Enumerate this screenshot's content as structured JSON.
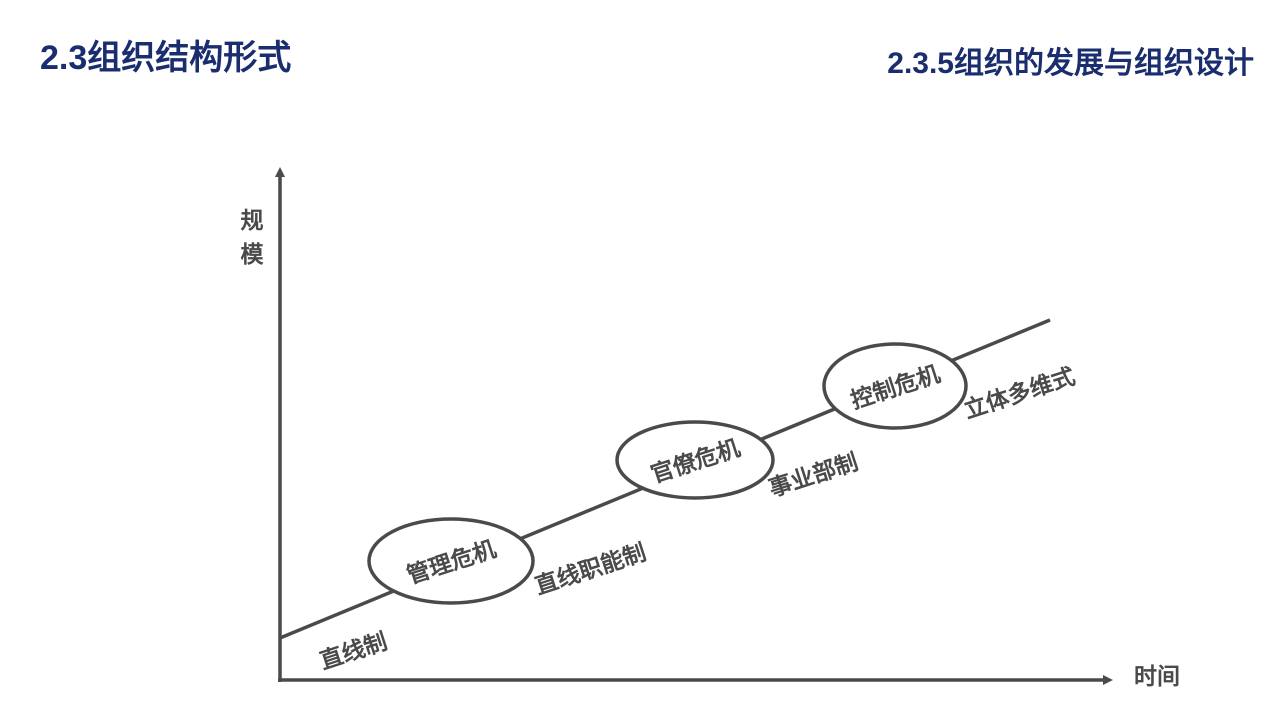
{
  "header": {
    "section_title": "2.3组织结构形式",
    "subsection_title": "2.3.5组织的发展与组织设计"
  },
  "diagram": {
    "y_axis_label_line1": "规",
    "y_axis_label_line2": "模",
    "x_axis_label": "时间",
    "stages": {
      "stage1": "直线制",
      "stage2": "直线职能制",
      "stage3": "事业部制",
      "stage4": "立体多维式"
    },
    "crises": {
      "crisis1": "管理危机",
      "crisis2": "官僚危机",
      "crisis3": "控制危机"
    },
    "colors": {
      "title": "#1a2d6e",
      "line": "#4a4a4a",
      "text": "#4a4a4a"
    }
  }
}
